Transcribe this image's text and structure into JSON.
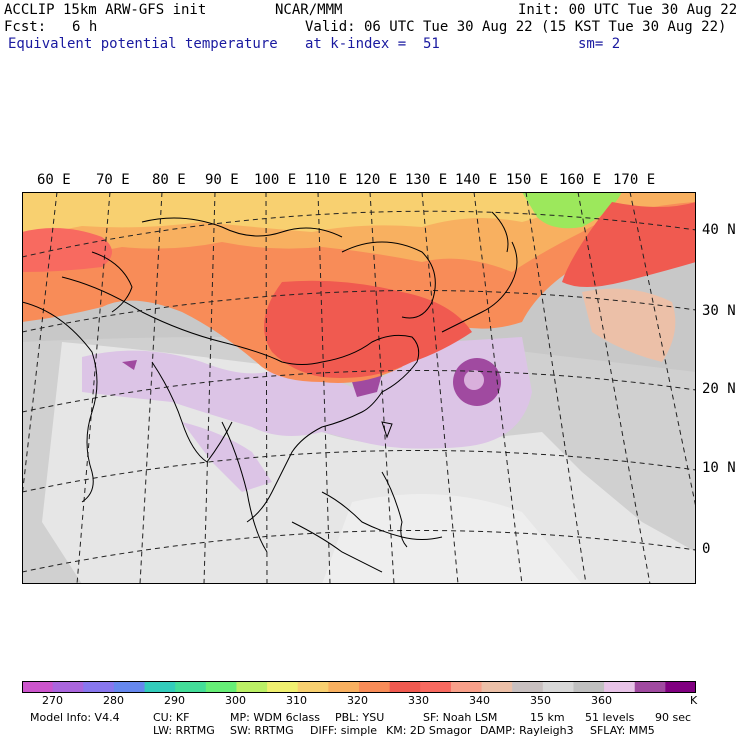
{
  "header": {
    "model_line": "ACCLIP 15km ARW-GFS init",
    "org": "NCAR/MMM",
    "init": "Init: 00 UTC Tue 30 Aug 22",
    "fcst_label": "Fcst:",
    "fcst_value": "6 h",
    "valid": "Valid: 06 UTC Tue 30 Aug 22 (15 KST Tue 30 Aug 22)",
    "field": "Equivalent potential temperature",
    "level": "at k-index =  51",
    "smoothing": "sm= 2"
  },
  "map": {
    "lon_labels": [
      "60 E",
      "70 E",
      "80 E",
      "90 E",
      "100 E",
      "110 E",
      "120 E",
      "130 E",
      "140 E",
      "150 E",
      "160 E",
      "170 E"
    ],
    "lat_labels": [
      "40 N",
      "30 N",
      "20 N",
      "10 N",
      "0"
    ]
  },
  "colorbar": {
    "colors": [
      "#cc55cc",
      "#aa66dd",
      "#8877ee",
      "#6688ee",
      "#33ccbb",
      "#44dd99",
      "#66ee77",
      "#bbf066",
      "#f0f070",
      "#f8d070",
      "#f8b060",
      "#f88c58",
      "#f05a50",
      "#f86a60",
      "#f8a08a",
      "#ecc0a8",
      "#c8c0c0",
      "#d8d8d8",
      "#c0c0c0",
      "#e8c4e8",
      "#a04aa0",
      "#800080"
    ],
    "labels": [
      "270",
      "280",
      "290",
      "300",
      "310",
      "320",
      "330",
      "340",
      "350",
      "360"
    ],
    "unit": "K"
  },
  "footer": {
    "line1": [
      "Model Info: V4.4",
      "CU: KF",
      "MP: WDM 6class",
      "PBL: YSU",
      "SF: Noah LSM",
      "15 km",
      "51 levels",
      "90 sec"
    ],
    "line2": [
      "LW: RRTMG",
      "SW: RRTMG",
      "DIFF: simple",
      "KM: 2D Smagor",
      "DAMP: Rayleigh3",
      "SFLAY: MM5"
    ]
  }
}
